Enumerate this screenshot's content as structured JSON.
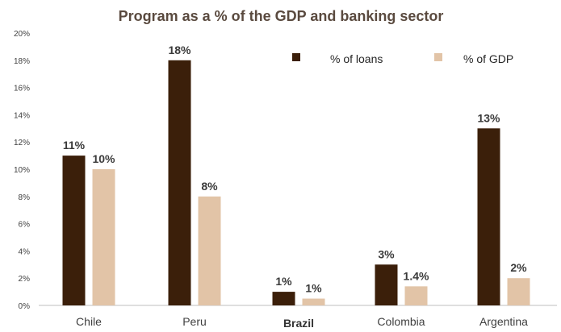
{
  "colors": {
    "loans": "#3b1f0a",
    "gdp": "#e2c4a7",
    "axis": "#bfbfbf",
    "title": "#5a4a3f"
  },
  "chart_data": {
    "type": "bar",
    "title": "Program as a % of the GDP and banking sector",
    "xlabel": "",
    "ylabel": "",
    "categories": [
      "Chile",
      "Peru",
      "Brazil",
      "Colombia",
      "Argentina"
    ],
    "bold_categories": [
      "Brazil"
    ],
    "series": [
      {
        "name": "% of loans",
        "values": [
          11,
          18,
          1,
          3,
          13
        ],
        "labels": [
          "11%",
          "18%",
          "1%",
          "3%",
          "13%"
        ]
      },
      {
        "name": "% of GDP",
        "values": [
          10,
          8,
          0.5,
          1.4,
          2
        ],
        "labels": [
          "10%",
          "8%",
          "1%",
          "1.4%",
          "2%"
        ]
      }
    ],
    "ylim": [
      0,
      20
    ],
    "yticks": [
      "0%",
      "2%",
      "4%",
      "6%",
      "8%",
      "10%",
      "12%",
      "14%",
      "16%",
      "18%",
      "20%"
    ],
    "grid": false,
    "legend_position": "top-right"
  }
}
